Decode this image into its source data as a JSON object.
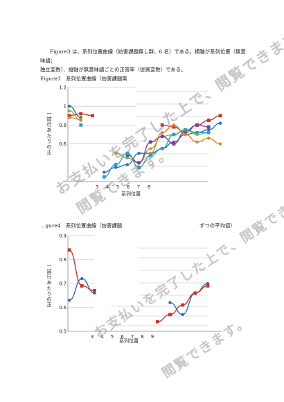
{
  "paragraph": {
    "line1": "Figure3 は、系列位置曲線（妨害課題無し群、6 名）である。横軸が系列位置（無意味語；",
    "line2": "独立変数）、縦軸が無意味語ごとの正答率（従属変数）である。"
  },
  "figure3": {
    "caption": "Figure3　系列位置曲線（妨害課題無",
    "y_label": "一試行あたりの正",
    "x_label": "系列位置",
    "y_ticks": [
      "1.2",
      "1",
      "0.8",
      "0.6"
    ],
    "x_ticks": [
      "3",
      "4",
      "5",
      "6",
      "7",
      "8"
    ]
  },
  "figure4": {
    "caption_left": "…gure4　系列位置曲線（妨害課題",
    "caption_right": "ずつの平均値）",
    "y_label": "一試行あたりの正",
    "x_label": "系列位置",
    "y_ticks": [
      "0.9",
      "0.8",
      "0.7",
      "0.6",
      "0.5"
    ],
    "x_ticks": [
      "3",
      "4",
      "5",
      "6",
      "7",
      "8",
      "9"
    ]
  },
  "watermark": {
    "line1": "お支払いを完了した上で、閲覧できます。",
    "line2": "閲覧できます。"
  },
  "chart_data": [
    {
      "type": "line",
      "title": "Figure3　系列位置曲線（妨害課題無",
      "xlabel": "系列位置",
      "ylabel": "一試行あたりの正",
      "ylim": [
        0.2,
        1.2
      ],
      "x": [
        1,
        2,
        3,
        4,
        5,
        6,
        7,
        8,
        9,
        10,
        11,
        12,
        13,
        14
      ],
      "series": [
        {
          "color": "#2e6fb5",
          "values": [
            1.0,
            0.88,
            null,
            0.3,
            0.35,
            0.38,
            0.5,
            0.5,
            0.55,
            0.62,
            0.7,
            0.72,
            0.75,
            0.82
          ]
        },
        {
          "color": "#c0392b",
          "values": [
            0.9,
            0.92,
            0.9,
            null,
            null,
            null,
            null,
            null,
            0.8,
            0.78,
            0.72,
            0.8,
            0.85,
            0.9
          ]
        },
        {
          "color": "#8db042",
          "values": [
            0.95,
            0.85,
            null,
            null,
            0.5,
            0.45,
            0.4,
            0.55,
            0.68,
            0.7,
            0.75,
            0.7,
            0.72,
            null
          ]
        },
        {
          "color": "#7d3c98",
          "values": [
            null,
            null,
            null,
            null,
            null,
            0.48,
            0.4,
            0.62,
            0.68,
            0.6,
            0.74,
            0.8,
            0.78,
            null
          ]
        },
        {
          "color": "#e67e22",
          "values": [
            0.88,
            0.86,
            null,
            null,
            null,
            null,
            null,
            0.5,
            0.72,
            0.8,
            0.7,
            0.62,
            0.66,
            0.6
          ]
        },
        {
          "color": "#2aa3b8",
          "values": [
            null,
            0.8,
            null,
            0.25,
            0.38,
            0.5,
            0.35,
            0.48,
            0.55,
            0.7,
            0.75,
            0.72,
            0.72,
            null
          ]
        }
      ]
    },
    {
      "type": "line",
      "title": "…gure4　系列位置曲線（妨害課題",
      "xlabel": "系列位置",
      "ylabel": "一試行あたりの正",
      "ylim": [
        0.5,
        0.9
      ],
      "x": [
        1,
        2,
        3,
        4,
        5,
        6,
        7,
        8,
        9,
        10,
        11,
        12
      ],
      "series": [
        {
          "color": "#2e6fb5",
          "values": [
            0.63,
            0.72,
            0.66,
            null,
            null,
            null,
            null,
            null,
            0.62,
            0.57,
            0.66,
            0.7
          ]
        },
        {
          "color": "#c0392b",
          "values": [
            0.84,
            0.69,
            0.67,
            null,
            null,
            null,
            null,
            0.54,
            0.57,
            0.61,
            0.66,
            0.69
          ]
        }
      ]
    }
  ]
}
